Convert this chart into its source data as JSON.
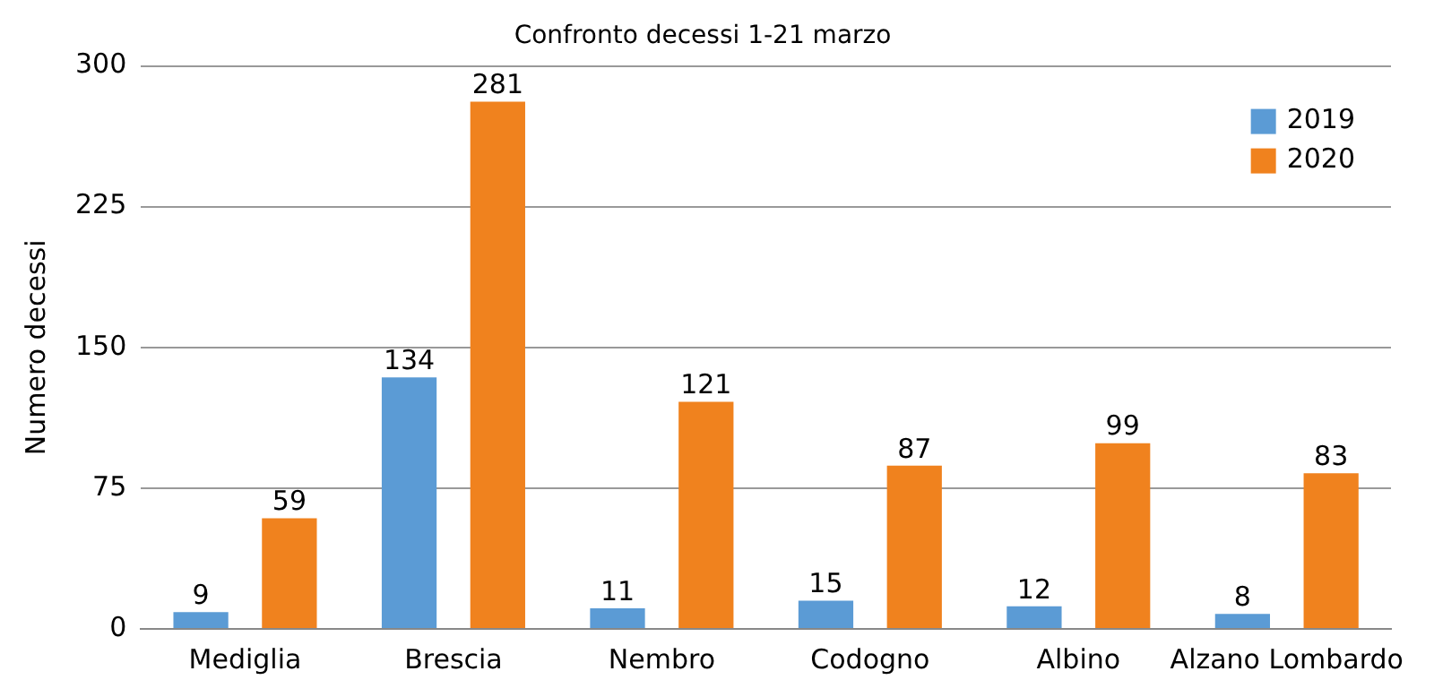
{
  "chart_data": {
    "type": "bar",
    "title": "Confronto decessi 1-21 marzo",
    "ylabel": "Numero decessi",
    "categories": [
      "Mediglia",
      "Brescia",
      "Nembro",
      "Codogno",
      "Albino",
      "Alzano Lombardo"
    ],
    "series": [
      {
        "name": "2019",
        "color": "#5b9bd5",
        "values": [
          9,
          134,
          11,
          15,
          12,
          8
        ]
      },
      {
        "name": "2020",
        "color": "#f0821e",
        "values": [
          59,
          281,
          121,
          87,
          99,
          83
        ]
      }
    ],
    "ylim": [
      0,
      300
    ],
    "yticks": [
      0,
      75,
      150,
      225,
      300
    ],
    "grid": "y",
    "legend": "top right",
    "data_labels": true
  }
}
